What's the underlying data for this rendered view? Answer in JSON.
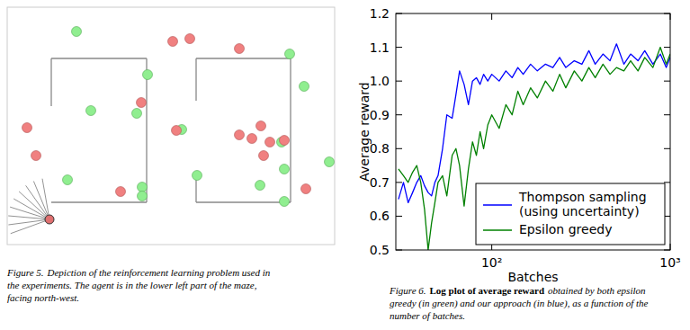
{
  "figure5": {
    "caption": {
      "label": "Figure 5.",
      "lines": [
        "Depiction of the reinforcement learning problem used in",
        "the experiments.  The agent is in the lower left part of the maze,",
        "facing north-west."
      ]
    }
  },
  "chart_data": {
    "type": "line",
    "x_label": "Batches",
    "y_label": "Average reward",
    "log": "x",
    "grid": false,
    "legend": "lower right",
    "xlim": [
      29,
      1000
    ],
    "ylim": [
      0.5,
      1.2
    ],
    "xticks": [
      {
        "value": 100,
        "label": "10²"
      },
      {
        "value": 1000,
        "label": "10³"
      }
    ],
    "yticks": [
      0.5,
      0.6,
      0.7,
      0.8,
      0.9,
      {
        "value": 1,
        "label": "1.0"
      },
      1.1,
      1.2
    ],
    "x": [
      30,
      32,
      34,
      36,
      38,
      40,
      42,
      44,
      46,
      48,
      50,
      53,
      56,
      60,
      63,
      66,
      70,
      74,
      78,
      82,
      86,
      90,
      95,
      100,
      110,
      120,
      130,
      140,
      150,
      165,
      180,
      200,
      220,
      240,
      260,
      290,
      320,
      350,
      380,
      420,
      460,
      500,
      550,
      600,
      660,
      720,
      800,
      880,
      950,
      1000
    ],
    "series": [
      {
        "name": "Thompson sampling\n(using uncertainty)",
        "color": "#0000ff",
        "values": [
          0.65,
          0.7,
          0.64,
          0.67,
          0.7,
          0.72,
          0.69,
          0.67,
          0.66,
          0.7,
          0.72,
          0.8,
          0.9,
          0.89,
          0.96,
          1.03,
          0.99,
          0.93,
          1.0,
          1.01,
          0.99,
          1.02,
          1.0,
          1.02,
          1.0,
          1.03,
          1.01,
          1.04,
          1.02,
          1.05,
          1.03,
          1.05,
          1.04,
          1.07,
          1.04,
          1.06,
          1.05,
          1.09,
          1.05,
          1.08,
          1.06,
          1.11,
          1.05,
          1.08,
          1.06,
          1.09,
          1.05,
          1.08,
          1.04,
          1.07
        ]
      },
      {
        "name": "Epsilon greedy",
        "color": "#008000",
        "values": [
          0.74,
          0.72,
          0.7,
          0.73,
          0.75,
          0.7,
          0.62,
          0.5,
          0.58,
          0.64,
          0.7,
          0.72,
          0.66,
          0.78,
          0.8,
          0.75,
          0.63,
          0.74,
          0.82,
          0.78,
          0.85,
          0.8,
          0.87,
          0.9,
          0.86,
          0.93,
          0.9,
          0.97,
          0.93,
          0.98,
          0.95,
          1.0,
          0.97,
          1.02,
          0.98,
          1.03,
          1.0,
          1.04,
          1.01,
          1.05,
          1.02,
          1.04,
          1.03,
          1.06,
          1.03,
          1.07,
          1.04,
          1.1,
          1.05,
          1.08
        ]
      }
    ]
  },
  "figure6": {
    "caption": {
      "label": "Figure 6.",
      "emphasis": "Log plot of average reward",
      "lines": [
        "obtained by both epsilon",
        "greedy (in green) and our approach (in blue), as a function of the",
        "number of batches."
      ]
    }
  }
}
